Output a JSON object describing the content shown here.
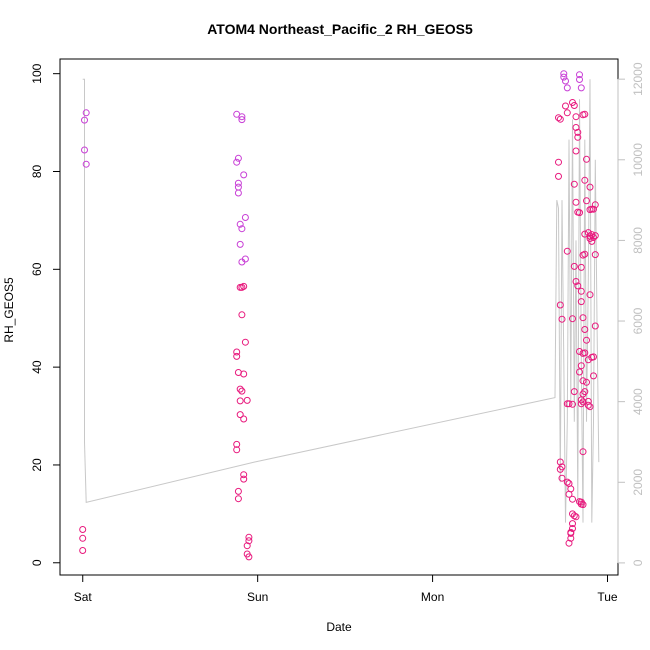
{
  "chart_data": {
    "type": "scatter",
    "title": "ATOM4 Northeast_Pacific_2 RH_GEOS5",
    "xlabel": "Date",
    "ylabel": "RH_GEOS5",
    "x_ticks": [
      {
        "label": "Sat",
        "day": 0
      },
      {
        "label": "Sun",
        "day": 1
      },
      {
        "label": "Mon",
        "day": 2
      },
      {
        "label": "Tue",
        "day": 3
      }
    ],
    "xlim": [
      -0.13,
      3.06
    ],
    "ylim": [
      -2.5,
      103
    ],
    "y_ticks": [
      0,
      20,
      40,
      60,
      80,
      100
    ],
    "y2lim": [
      -300,
      12500
    ],
    "y2_ticks": [
      0,
      2000,
      4000,
      6000,
      8000,
      10000,
      12000
    ],
    "grid": false,
    "colors": {
      "points": "#e8197d",
      "points_alt": "#c83fd6",
      "line": "#c8c8c8",
      "right_axis": "#c0c0c0"
    },
    "series": [
      {
        "kind": "points",
        "points": [
          [
            0.01,
            90.5
          ],
          [
            0.02,
            92.0
          ],
          [
            0.01,
            84.4
          ],
          [
            0.02,
            81.5
          ],
          [
            0.0,
            6.8
          ],
          [
            0.0,
            5.0
          ],
          [
            0.0,
            2.5
          ],
          [
            0.88,
            91.7
          ],
          [
            0.89,
            82.7
          ],
          [
            0.88,
            81.9
          ],
          [
            0.89,
            77.6
          ],
          [
            0.89,
            76.8
          ],
          [
            0.89,
            75.6
          ],
          [
            0.9,
            69.2
          ],
          [
            0.91,
            68.3
          ],
          [
            0.9,
            65.1
          ],
          [
            0.91,
            61.5
          ],
          [
            0.9,
            56.3
          ],
          [
            0.91,
            56.3
          ],
          [
            0.92,
            56.5
          ],
          [
            0.91,
            50.7
          ],
          [
            0.92,
            79.3
          ],
          [
            0.93,
            70.6
          ],
          [
            0.93,
            62.1
          ],
          [
            0.93,
            45.1
          ],
          [
            0.88,
            43.1
          ],
          [
            0.88,
            42.2
          ],
          [
            0.89,
            38.9
          ],
          [
            0.92,
            38.6
          ],
          [
            0.9,
            35.5
          ],
          [
            0.91,
            35.1
          ],
          [
            0.9,
            33.1
          ],
          [
            0.94,
            33.2
          ],
          [
            0.9,
            30.3
          ],
          [
            0.92,
            29.4
          ],
          [
            0.88,
            24.2
          ],
          [
            0.88,
            23.1
          ],
          [
            0.92,
            18.0
          ],
          [
            0.92,
            17.1
          ],
          [
            0.89,
            14.6
          ],
          [
            0.89,
            13.1
          ],
          [
            0.91,
            91.2
          ],
          [
            0.91,
            90.6
          ],
          [
            0.95,
            5.2
          ],
          [
            0.95,
            4.5
          ],
          [
            0.94,
            3.5
          ],
          [
            0.94,
            1.8
          ],
          [
            0.95,
            1.2
          ],
          [
            2.72,
            91.0
          ],
          [
            2.73,
            90.7
          ],
          [
            2.75,
            99.3
          ],
          [
            2.76,
            98.5
          ],
          [
            2.77,
            97.1
          ],
          [
            2.75,
            100.0
          ],
          [
            2.76,
            93.4
          ],
          [
            2.77,
            92.0
          ],
          [
            2.8,
            94.1
          ],
          [
            2.81,
            93.5
          ],
          [
            2.82,
            91.2
          ],
          [
            2.82,
            89.0
          ],
          [
            2.83,
            88.0
          ],
          [
            2.83,
            87.0
          ],
          [
            2.84,
            99.8
          ],
          [
            2.84,
            98.8
          ],
          [
            2.85,
            97.1
          ],
          [
            2.86,
            91.6
          ],
          [
            2.87,
            91.7
          ],
          [
            2.82,
            84.2
          ],
          [
            2.72,
            81.9
          ],
          [
            2.72,
            79.0
          ],
          [
            2.87,
            78.2
          ],
          [
            2.88,
            82.5
          ],
          [
            2.9,
            76.8
          ],
          [
            2.81,
            77.4
          ],
          [
            2.88,
            74.0
          ],
          [
            2.82,
            73.7
          ],
          [
            2.84,
            71.6
          ],
          [
            2.9,
            72.2
          ],
          [
            2.91,
            72.3
          ],
          [
            2.92,
            72.3
          ],
          [
            2.93,
            73.2
          ],
          [
            2.83,
            71.7
          ],
          [
            2.87,
            67.2
          ],
          [
            2.89,
            67.5
          ],
          [
            2.9,
            66.8
          ],
          [
            2.9,
            66.3
          ],
          [
            2.91,
            67.1
          ],
          [
            2.91,
            65.7
          ],
          [
            2.92,
            66.5
          ],
          [
            2.93,
            66.9
          ],
          [
            2.86,
            62.9
          ],
          [
            2.87,
            63.1
          ],
          [
            2.93,
            63.0
          ],
          [
            2.77,
            63.7
          ],
          [
            2.81,
            60.6
          ],
          [
            2.85,
            60.4
          ],
          [
            2.82,
            57.5
          ],
          [
            2.83,
            56.6
          ],
          [
            2.85,
            55.5
          ],
          [
            2.85,
            53.4
          ],
          [
            2.9,
            54.8
          ],
          [
            2.73,
            52.7
          ],
          [
            2.74,
            49.8
          ],
          [
            2.8,
            49.9
          ],
          [
            2.86,
            50.1
          ],
          [
            2.87,
            47.7
          ],
          [
            2.88,
            45.5
          ],
          [
            2.93,
            48.4
          ],
          [
            2.84,
            43.2
          ],
          [
            2.86,
            42.8
          ],
          [
            2.87,
            42.9
          ],
          [
            2.89,
            41.5
          ],
          [
            2.91,
            42.0
          ],
          [
            2.92,
            42.1
          ],
          [
            2.85,
            40.3
          ],
          [
            2.84,
            39.0
          ],
          [
            2.86,
            37.2
          ],
          [
            2.88,
            36.9
          ],
          [
            2.92,
            38.2
          ],
          [
            2.86,
            34.5
          ],
          [
            2.87,
            35.0
          ],
          [
            2.81,
            35.0
          ],
          [
            2.85,
            33.3
          ],
          [
            2.86,
            32.9
          ],
          [
            2.89,
            33.0
          ],
          [
            2.77,
            32.5
          ],
          [
            2.78,
            32.5
          ],
          [
            2.8,
            32.4
          ],
          [
            2.85,
            32.5
          ],
          [
            2.89,
            32.2
          ],
          [
            2.9,
            31.9
          ],
          [
            2.86,
            22.7
          ],
          [
            2.73,
            20.6
          ],
          [
            2.74,
            19.6
          ],
          [
            2.73,
            19.1
          ],
          [
            2.74,
            17.3
          ],
          [
            2.77,
            16.5
          ],
          [
            2.78,
            16.2
          ],
          [
            2.79,
            15.1
          ],
          [
            2.78,
            14.0
          ],
          [
            2.8,
            13.0
          ],
          [
            2.8,
            10.0
          ],
          [
            2.81,
            9.6
          ],
          [
            2.82,
            9.4
          ],
          [
            2.8,
            8.0
          ],
          [
            2.8,
            7.0
          ],
          [
            2.79,
            6.2
          ],
          [
            2.79,
            6.0
          ],
          [
            2.79,
            5.0
          ],
          [
            2.78,
            4.0
          ],
          [
            2.84,
            12.5
          ],
          [
            2.85,
            12.4
          ],
          [
            2.85,
            12.0
          ],
          [
            2.86,
            11.9
          ]
        ]
      },
      {
        "kind": "line",
        "axis": "right",
        "points": [
          [
            0.0,
            12000
          ],
          [
            0.01,
            12000
          ],
          [
            0.01,
            3000
          ],
          [
            0.02,
            1500
          ],
          [
            0.98,
            2500
          ],
          [
            2.7,
            4100
          ],
          [
            2.71,
            9000
          ],
          [
            2.72,
            8800
          ],
          [
            2.73,
            2000
          ],
          [
            2.74,
            9000
          ],
          [
            2.75,
            5000
          ],
          [
            2.76,
            1000
          ],
          [
            2.77,
            3500
          ],
          [
            2.78,
            10500
          ],
          [
            2.79,
            4000
          ],
          [
            2.8,
            11000
          ],
          [
            2.81,
            3500
          ],
          [
            2.82,
            8000
          ],
          [
            2.83,
            1500
          ],
          [
            2.84,
            11500
          ],
          [
            2.85,
            5000
          ],
          [
            2.86,
            1000
          ],
          [
            2.87,
            10500
          ],
          [
            2.88,
            3500
          ],
          [
            2.89,
            7000
          ],
          [
            2.9,
            12000
          ],
          [
            2.91,
            1000
          ],
          [
            2.92,
            3500
          ],
          [
            2.93,
            10000
          ],
          [
            2.94,
            6000
          ],
          [
            2.95,
            2500
          ]
        ]
      }
    ]
  }
}
